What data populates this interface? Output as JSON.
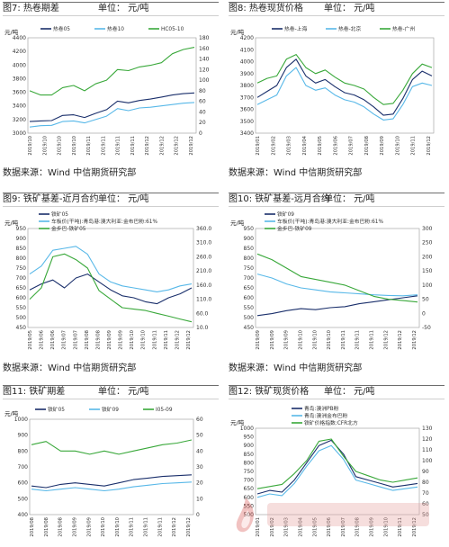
{
  "panels": [
    {
      "caption": "图7: 热卷期差",
      "unit": "单位： 元/吨",
      "source": "数据来源：Wind 中信期货研究部",
      "chart_data": {
        "type": "line",
        "ylabel_left": "元/吨",
        "ylim_left": [
          3000,
          4400
        ],
        "ylim_right": [
          0,
          180
        ],
        "yticks_left": [
          "4400",
          "4200",
          "4000",
          "3800",
          "3600",
          "3400",
          "3200",
          "3000"
        ],
        "yticks_right": [
          "180",
          "160",
          "140",
          "120",
          "100",
          "80",
          "60",
          "40",
          "20",
          "0"
        ],
        "xticks": [
          "2019/10",
          "2019/10",
          "2019/10",
          "2019/10",
          "2019/11",
          "2019/11",
          "2019/11",
          "2019/11",
          "2019/12",
          "2019/12",
          "2019/12",
          "2019/12"
        ],
        "series": [
          {
            "name": "热卷05",
            "color": "#1a2f6b",
            "axis": "left",
            "values": [
              3170,
              3180,
              3185,
              3260,
              3270,
              3230,
              3290,
              3345,
              3470,
              3445,
              3480,
              3500,
              3530,
              3560,
              3580,
              3590
            ]
          },
          {
            "name": "热卷10",
            "color": "#58b8e8",
            "axis": "left",
            "values": [
              3090,
              3110,
              3115,
              3170,
              3180,
              3150,
              3200,
              3250,
              3360,
              3330,
              3370,
              3380,
              3400,
              3420,
              3440,
              3450
            ]
          },
          {
            "name": "HC05-10",
            "color": "#39a83a",
            "axis": "right",
            "values": [
              80,
              72,
              72,
              86,
              90,
              80,
              93,
              100,
              120,
              118,
              125,
              128,
              133,
              150,
              158,
              162
            ]
          }
        ]
      }
    },
    {
      "caption": "图8: 热卷现货价格",
      "unit": "单位： 元/吨",
      "source": "数据来源：Wind 中信期货研究部",
      "chart_data": {
        "type": "line",
        "ylabel_left": "元/吨",
        "ylim_left": [
          3400,
          4200
        ],
        "yticks_left": [
          "4200",
          "4100",
          "4000",
          "3900",
          "3800",
          "3700",
          "3600",
          "3500",
          "3400"
        ],
        "xticks": [
          "2019/01",
          "2019/02",
          "2019/03",
          "2019/04",
          "2019/05",
          "2019/06",
          "2019/07",
          "2019/08",
          "2019/09",
          "2019/10",
          "2019/11",
          "2019/12"
        ],
        "series": [
          {
            "name": "热卷-上海",
            "color": "#1a2f6b",
            "axis": "left",
            "values": [
              3700,
              3750,
              3800,
              3950,
              4020,
              3880,
              3820,
              3850,
              3790,
              3740,
              3720,
              3680,
              3620,
              3550,
              3560,
              3690,
              3850,
              3920,
              3880
            ]
          },
          {
            "name": "热卷-北京",
            "color": "#58b8e8",
            "axis": "left",
            "values": [
              3640,
              3680,
              3720,
              3880,
              3950,
              3800,
              3760,
              3780,
              3720,
              3680,
              3660,
              3620,
              3560,
              3510,
              3520,
              3640,
              3790,
              3820,
              3800
            ]
          },
          {
            "name": "热卷-广州",
            "color": "#39a83a",
            "axis": "left",
            "values": [
              3820,
              3860,
              3880,
              4020,
              4060,
              3950,
              3900,
              3930,
              3870,
              3820,
              3800,
              3770,
              3700,
              3640,
              3650,
              3760,
              3900,
              3980,
              3950
            ]
          }
        ]
      }
    },
    {
      "caption": "图9: 铁矿基差-近月合约",
      "unit": "单位： 元/吨",
      "source": "数据来源：Wind 中信期货研究部",
      "chart_data": {
        "type": "line",
        "ylabel_left": "元/吨",
        "ylim_left": [
          450,
          950
        ],
        "ylim_right": [
          10,
          360
        ],
        "yticks_left": [
          "950",
          "900",
          "850",
          "800",
          "750",
          "700",
          "650",
          "600",
          "550",
          "500",
          "450"
        ],
        "yticks_right": [
          "360.0",
          "310.0",
          "260.0",
          "210.0",
          "160.0",
          "110.0",
          "60.0",
          "10.0"
        ],
        "xticks": [
          "2019/05",
          "2019/06",
          "2019/06",
          "2019/07",
          "2019/07",
          "2019/08",
          "2019/08",
          "2019/09",
          "2019/09",
          "2019/10",
          "2019/10",
          "2019/11",
          "2019/11",
          "2019/12",
          "2019/12"
        ],
        "series": [
          {
            "name": "铁矿05",
            "color": "#1a2f6b",
            "axis": "left",
            "values": [
              640,
              670,
              690,
              650,
              700,
              720,
              680,
              640,
              610,
              600,
              580,
              570,
              600,
              620,
              650
            ]
          },
          {
            "name": "车板价(干吨):青岛港:澳大利亚:金布巴粉:61%",
            "color": "#58b8e8",
            "axis": "left",
            "values": [
              720,
              760,
              840,
              850,
              860,
              820,
              720,
              680,
              660,
              650,
              640,
              630,
              640,
              660,
              670
            ]
          },
          {
            "name": "金步巴-铁矿05",
            "color": "#39a83a",
            "axis": "right",
            "values": [
              110,
              150,
              260,
              270,
              250,
              220,
              140,
              110,
              80,
              75,
              70,
              60,
              50,
              40,
              30
            ]
          }
        ]
      }
    },
    {
      "caption": "图10: 铁矿基差-远月合约",
      "unit": "单位： 元/吨",
      "source": "数据来源：Wind 中信期货研究部",
      "chart_data": {
        "type": "line",
        "ylabel_left": "元/吨",
        "ylim_left": [
          450,
          950
        ],
        "ylim_right": [
          -50,
          300
        ],
        "yticks_left": [
          "950",
          "900",
          "850",
          "800",
          "750",
          "700",
          "650",
          "600",
          "550",
          "500",
          "450"
        ],
        "yticks_right": [
          "300",
          "250",
          "200",
          "150",
          "100",
          "50",
          "0",
          "-50"
        ],
        "xticks": [
          "2019/09",
          "2019/09",
          "2019/09",
          "2019/10",
          "2019/10",
          "2019/10",
          "2019/11",
          "2019/11",
          "2019/11",
          "2019/12",
          "2019/12",
          "2019/12"
        ],
        "series": [
          {
            "name": "铁矿09",
            "color": "#1a2f6b",
            "axis": "left",
            "values": [
              510,
              520,
              535,
              545,
              540,
              550,
              555,
              570,
              580,
              590,
              600,
              610
            ]
          },
          {
            "name": "车板价(干吨):青岛港:澳大利亚:金布巴粉:61%",
            "color": "#58b8e8",
            "axis": "left",
            "values": [
              720,
              700,
              670,
              650,
              640,
              630,
              625,
              620,
              615,
              612,
              610,
              615
            ]
          },
          {
            "name": "金步巴-铁矿09",
            "color": "#39a83a",
            "axis": "right",
            "values": [
              210,
              190,
              160,
              130,
              120,
              110,
              100,
              80,
              60,
              50,
              45,
              40
            ]
          }
        ]
      }
    },
    {
      "caption": "图11: 铁矿期差",
      "unit": "单位： 元/吨",
      "source": "",
      "chart_data": {
        "type": "line",
        "ylabel_left": "元/吨",
        "ylim_left": [
          400,
          1000
        ],
        "ylim_right": [
          0,
          60
        ],
        "yticks_left": [
          "1000",
          "900",
          "800",
          "700",
          "600",
          "500",
          "400"
        ],
        "yticks_right": [
          "60",
          "50",
          "40",
          "30",
          "20",
          "10",
          "0"
        ],
        "xticks": [
          "2019/08",
          "2019/08",
          "2019/08",
          "2019/09",
          "2019/09",
          "2019/10",
          "2019/10",
          "2019/11",
          "2019/11",
          "2019/11",
          "2019/12",
          "2019/12"
        ],
        "series": [
          {
            "name": "铁矿05",
            "color": "#1a2f6b",
            "axis": "left",
            "values": [
              580,
              570,
              590,
              600,
              590,
              580,
              600,
              620,
              630,
              640,
              645,
              650
            ]
          },
          {
            "name": "铁矿09",
            "color": "#58b8e8",
            "axis": "left",
            "values": [
              560,
              550,
              560,
              570,
              560,
              550,
              560,
              575,
              585,
              595,
              600,
              605
            ]
          },
          {
            "name": "I05-09",
            "color": "#39a83a",
            "axis": "right",
            "values": [
              44,
              46,
              40,
              40,
              38,
              40,
              38,
              40,
              42,
              44,
              45,
              47
            ]
          }
        ]
      }
    },
    {
      "caption": "图12: 铁矿现货价格",
      "unit": "单位： 元/吨",
      "source": "",
      "chart_data": {
        "type": "line",
        "ylabel_left": "元/吨",
        "ylim_left": [
          500,
          1000
        ],
        "ylim_right": [
          50,
          130
        ],
        "yticks_left": [
          "1000",
          "950",
          "900",
          "850",
          "800",
          "750",
          "700",
          "650",
          "600",
          "550",
          "500"
        ],
        "yticks_right": [
          "130",
          "120",
          "110",
          "100",
          "90",
          "80",
          "70",
          "60",
          "50"
        ],
        "xticks": [
          "2019/01",
          "2019/02",
          "2019/03",
          "2019/04",
          "2019/05",
          "2019/06",
          "2019/07",
          "2019/08",
          "2019/09",
          "2019/10",
          "2019/11",
          "2019/12"
        ],
        "series": [
          {
            "name": "青岛:澳洲PB粉",
            "color": "#1a2f6b",
            "axis": "left",
            "values": [
              620,
              640,
              630,
              700,
              800,
              900,
              930,
              850,
              720,
              700,
              680,
              660,
              670,
              680
            ]
          },
          {
            "name": "青岛:澳洲金布巴粉",
            "color": "#58b8e8",
            "axis": "left",
            "values": [
              600,
              620,
              610,
              680,
              780,
              870,
              900,
              820,
              700,
              680,
              660,
              640,
              650,
              660
            ]
          },
          {
            "name": "铁矿价格指数:CFR北方",
            "color": "#39a83a",
            "axis": "right",
            "values": [
              74,
              76,
              78,
              88,
              100,
              118,
              120,
              104,
              90,
              86,
              82,
              80,
              82,
              84
            ]
          }
        ]
      }
    }
  ]
}
